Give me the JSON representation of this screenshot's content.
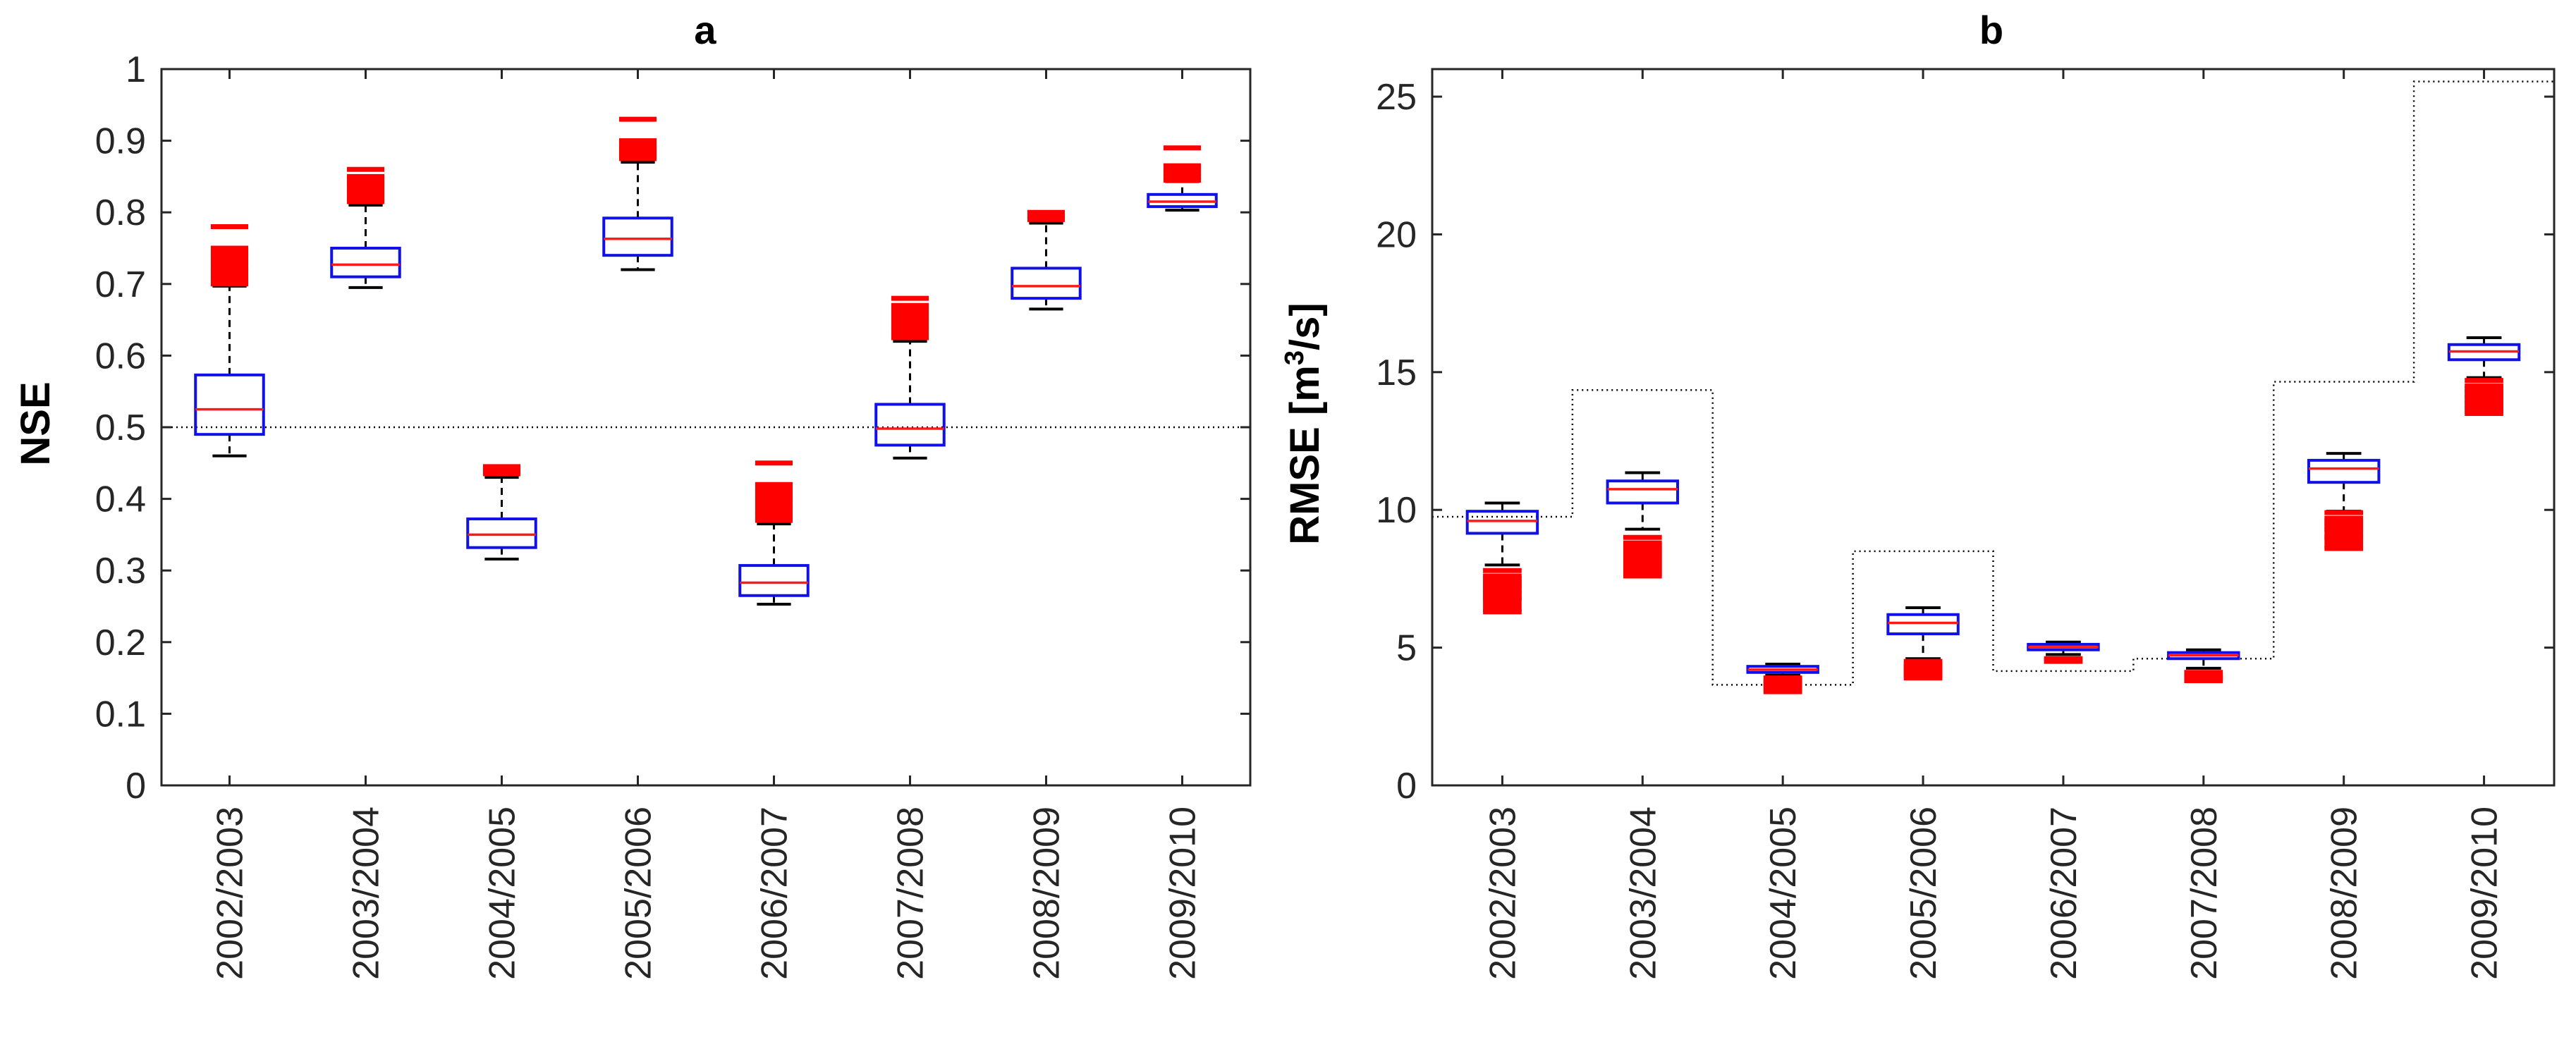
{
  "chart_data": [
    {
      "type": "box",
      "title": "a",
      "xlabel": "",
      "ylabel": "NSE",
      "ylim": [
        0,
        1
      ],
      "yticks": [
        0,
        0.1,
        0.2,
        0.3,
        0.4,
        0.5,
        0.6,
        0.7,
        0.8,
        0.9,
        1
      ],
      "ytick_labels": [
        "0",
        "0.1",
        "0.2",
        "0.3",
        "0.4",
        "0.5",
        "0.6",
        "0.7",
        "0.8",
        "0.9",
        "1"
      ],
      "categories": [
        "2002/2003",
        "2003/2004",
        "2004/2005",
        "2005/2006",
        "2006/2007",
        "2007/2008",
        "2008/2009",
        "2009/2010"
      ],
      "boxes": [
        {
          "whisker_low": 0.46,
          "q1": 0.49,
          "median": 0.525,
          "q3": 0.573,
          "whisker_high": 0.697,
          "outliers": [
            0.7,
            0.71,
            0.72,
            0.73,
            0.74,
            0.75,
            0.78
          ]
        },
        {
          "whisker_low": 0.695,
          "q1": 0.71,
          "median": 0.727,
          "q3": 0.75,
          "whisker_high": 0.81,
          "outliers": [
            0.815,
            0.82,
            0.83,
            0.84,
            0.85,
            0.86
          ]
        },
        {
          "whisker_low": 0.316,
          "q1": 0.332,
          "median": 0.35,
          "q3": 0.372,
          "whisker_high": 0.43,
          "outliers": [
            0.435,
            0.44,
            0.445
          ]
        },
        {
          "whisker_low": 0.72,
          "q1": 0.74,
          "median": 0.763,
          "q3": 0.792,
          "whisker_high": 0.87,
          "outliers": [
            0.875,
            0.88,
            0.885,
            0.89,
            0.9,
            0.93
          ]
        },
        {
          "whisker_low": 0.253,
          "q1": 0.265,
          "median": 0.283,
          "q3": 0.307,
          "whisker_high": 0.365,
          "outliers": [
            0.37,
            0.38,
            0.39,
            0.4,
            0.41,
            0.42,
            0.45
          ]
        },
        {
          "whisker_low": 0.457,
          "q1": 0.475,
          "median": 0.498,
          "q3": 0.532,
          "whisker_high": 0.62,
          "outliers": [
            0.625,
            0.64,
            0.65,
            0.66,
            0.67,
            0.68
          ]
        },
        {
          "whisker_low": 0.665,
          "q1": 0.68,
          "median": 0.697,
          "q3": 0.722,
          "whisker_high": 0.785,
          "outliers": [
            0.79,
            0.795,
            0.8
          ]
        },
        {
          "whisker_low": 0.803,
          "q1": 0.808,
          "median": 0.815,
          "q3": 0.825,
          "whisker_high": 0.843,
          "outliers": [
            0.845,
            0.85,
            0.855,
            0.86,
            0.865,
            0.89
          ]
        }
      ],
      "reference_line": {
        "style": "dotted",
        "values": [
          0.5,
          0.5,
          0.5,
          0.5,
          0.5,
          0.5,
          0.5,
          0.5
        ]
      }
    },
    {
      "type": "box",
      "title": "b",
      "xlabel": "",
      "ylabel_main": "RMSE [m",
      "ylabel_sup": "3",
      "ylabel_tail": "/s]",
      "ylim": [
        0,
        26
      ],
      "yticks": [
        0,
        5,
        10,
        15,
        20,
        25
      ],
      "ytick_labels": [
        "0",
        "5",
        "10",
        "15",
        "20",
        "25"
      ],
      "categories": [
        "2002/2003",
        "2003/2004",
        "2004/2005",
        "2005/2006",
        "2006/2007",
        "2007/2008",
        "2008/2009",
        "2009/2010"
      ],
      "boxes": [
        {
          "whisker_low": 8.0,
          "q1": 9.15,
          "median": 9.6,
          "q3": 9.95,
          "whisker_high": 10.25,
          "outliers": [
            6.3,
            6.8,
            7.0,
            7.2,
            7.4,
            7.6,
            7.8
          ]
        },
        {
          "whisker_low": 9.3,
          "q1": 10.25,
          "median": 10.75,
          "q3": 11.05,
          "whisker_high": 11.35,
          "outliers": [
            7.6,
            7.8,
            8.0,
            8.2,
            8.4,
            8.6,
            8.8,
            9.0
          ]
        },
        {
          "whisker_low": 4.0,
          "q1": 4.1,
          "median": 4.2,
          "q3": 4.32,
          "whisker_high": 4.4,
          "outliers": [
            3.4,
            3.6,
            3.7,
            3.8,
            3.9
          ]
        },
        {
          "whisker_low": 4.6,
          "q1": 5.5,
          "median": 5.9,
          "q3": 6.2,
          "whisker_high": 6.45,
          "outliers": [
            3.9,
            4.0,
            4.1,
            4.2,
            4.3,
            4.4,
            4.5
          ]
        },
        {
          "whisker_low": 4.75,
          "q1": 4.92,
          "median": 5.02,
          "q3": 5.12,
          "whisker_high": 5.2,
          "outliers": [
            4.5,
            4.6
          ]
        },
        {
          "whisker_low": 4.25,
          "q1": 4.6,
          "median": 4.72,
          "q3": 4.82,
          "whisker_high": 4.92,
          "outliers": [
            3.8,
            3.9,
            4.0,
            4.1
          ]
        },
        {
          "whisker_low": 9.95,
          "q1": 11.0,
          "median": 11.5,
          "q3": 11.8,
          "whisker_high": 12.05,
          "outliers": [
            8.6,
            9.0,
            9.3,
            9.5,
            9.7,
            9.9
          ]
        },
        {
          "whisker_low": 14.8,
          "q1": 15.45,
          "median": 15.75,
          "q3": 16.0,
          "whisker_high": 16.25,
          "outliers": [
            13.5,
            13.7,
            13.9,
            14.1,
            14.3,
            14.5,
            14.7
          ]
        }
      ],
      "reference_line": {
        "style": "dotted-step",
        "values": [
          9.75,
          14.35,
          3.65,
          8.5,
          4.15,
          4.6,
          14.65,
          25.55
        ]
      }
    }
  ],
  "colors": {
    "box": "#1010e8",
    "median": "#ff1a1a",
    "outlier": "#ff0000",
    "whisker": "#000000",
    "reference": "#000000",
    "axis": "#262626"
  }
}
